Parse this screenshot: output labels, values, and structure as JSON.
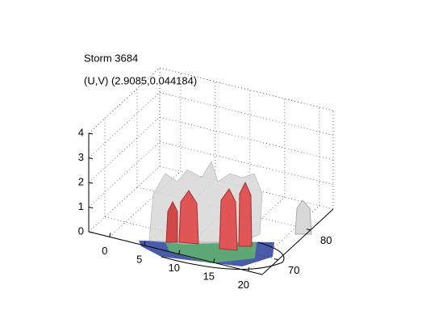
{
  "chart_data": {
    "type": "isosurface",
    "title": "Storm 3684",
    "subtitle": "(U,V) (2.9085,0.044184)",
    "xlim": [
      -3,
      22
    ],
    "xticks": [
      0,
      5,
      10,
      15,
      20
    ],
    "ylim": [
      65,
      87
    ],
    "yticks": [
      70,
      80
    ],
    "zlim": [
      0,
      4
    ],
    "zticks": [
      0,
      1,
      2,
      3,
      4
    ],
    "grid": true
  }
}
